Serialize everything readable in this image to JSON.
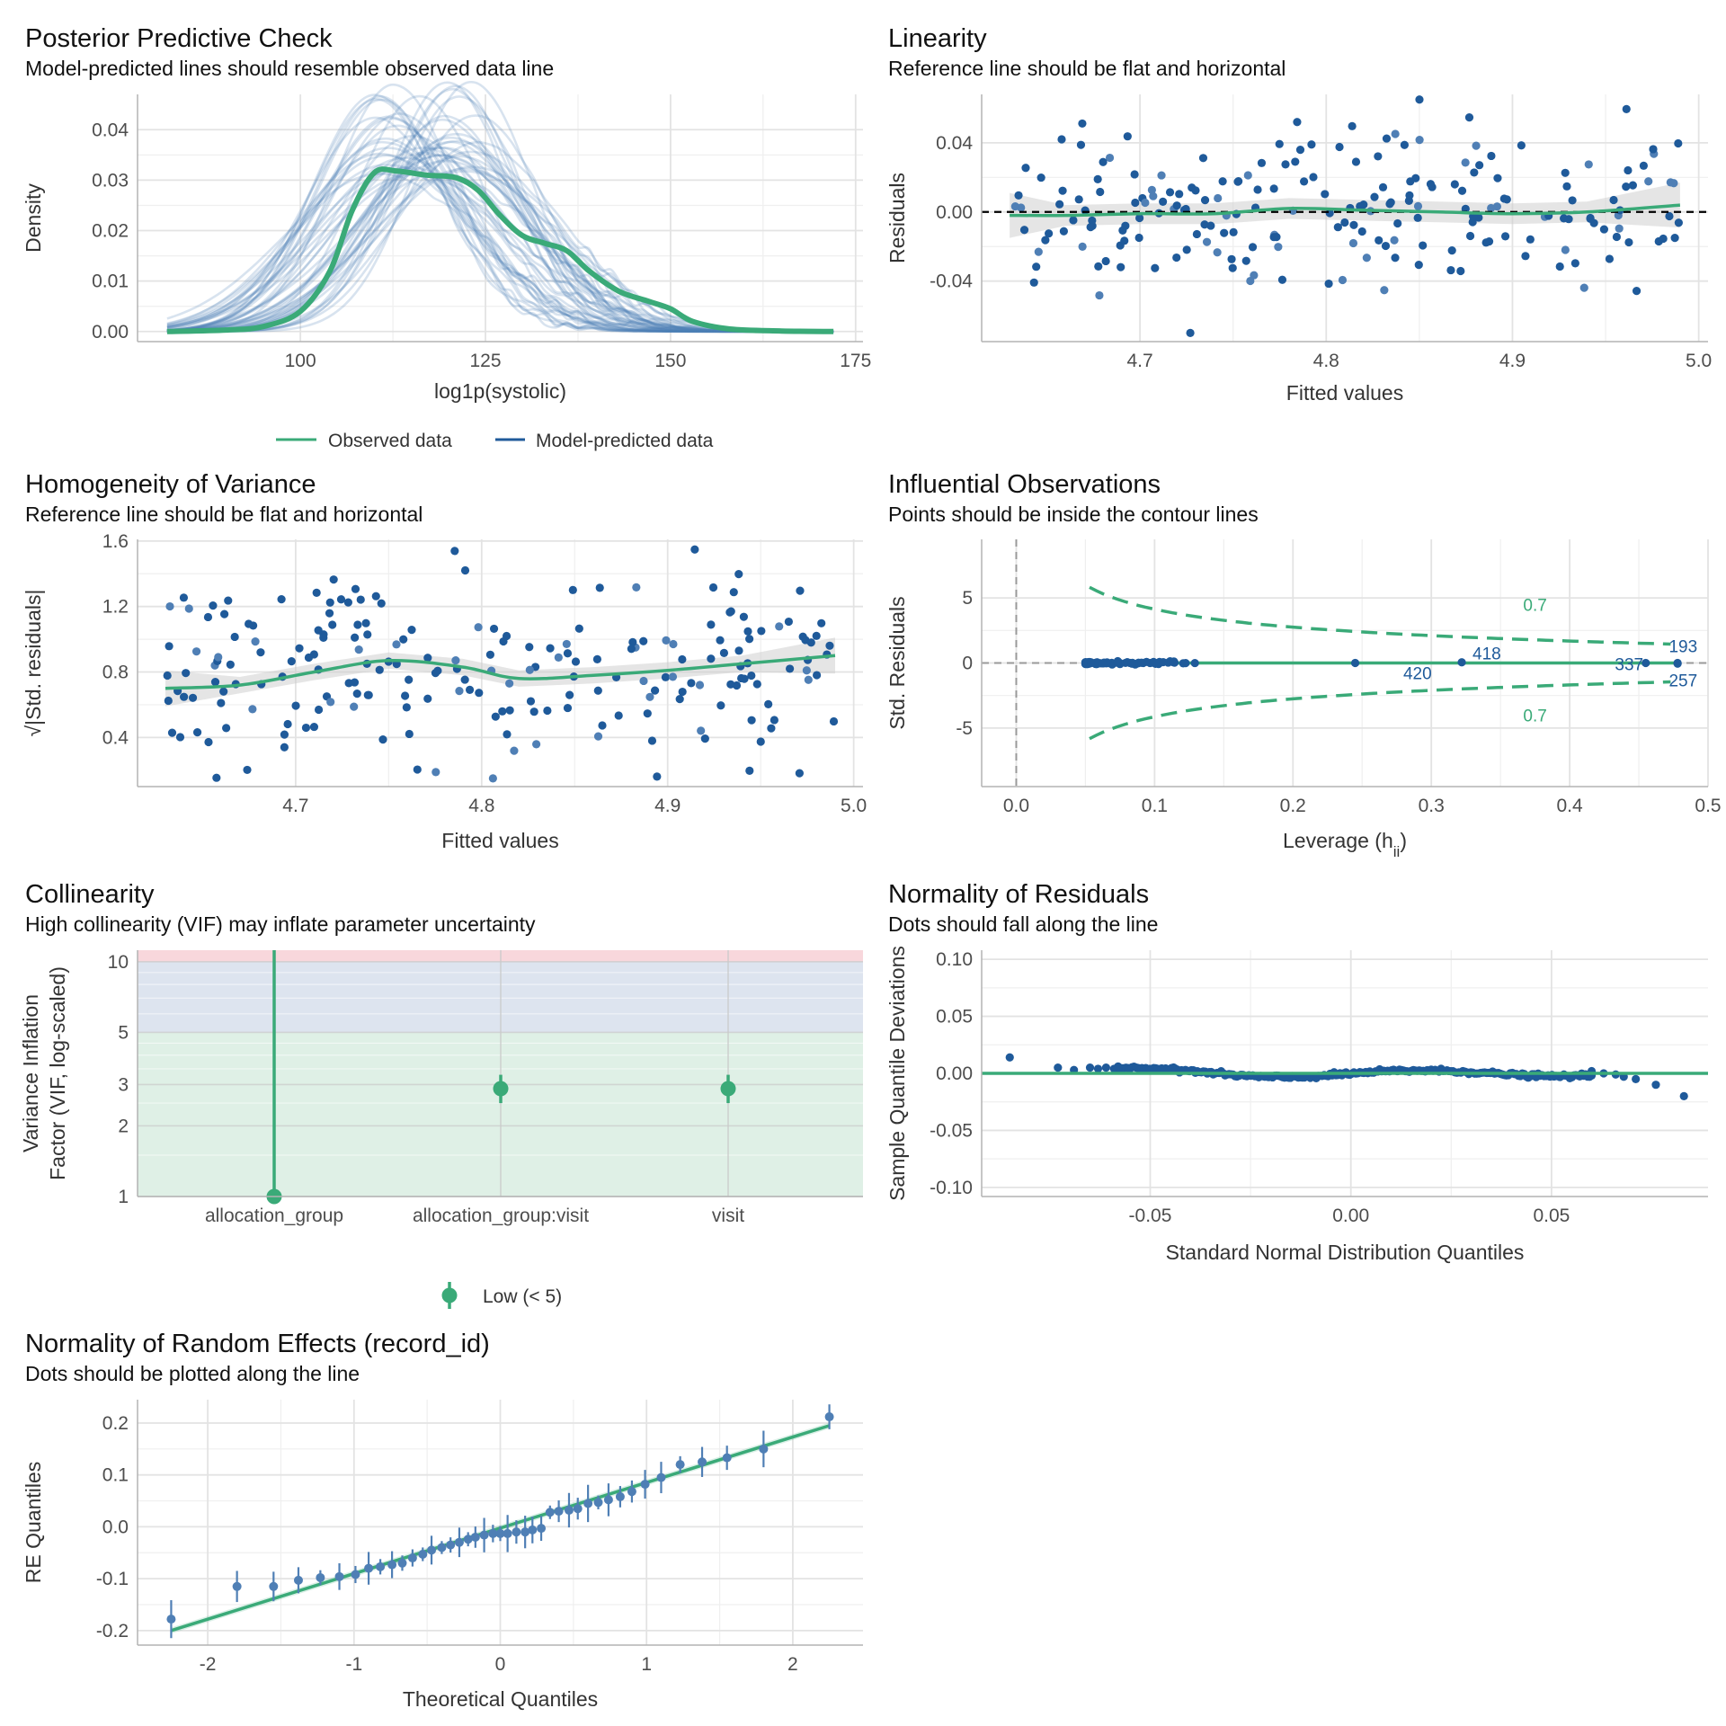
{
  "colors": {
    "green": "#3aaa78",
    "blue": "#1f5a9a",
    "blue_light": "#4f7fb5",
    "ribbon": "#cccccc",
    "grid": "#e3e3e3",
    "axis": "#b3b3b3",
    "zone_high": "#f8d7dc",
    "zone_moderate": "#dde4ef",
    "zone_low": "#dff0e6"
  },
  "chart_data": [
    {
      "id": "ppc",
      "type": "line",
      "title": "Posterior Predictive Check",
      "subtitle": "Model-predicted lines should resemble observed data line",
      "xlabel": "log1p(systolic)",
      "ylabel": "Density",
      "xlim": [
        78,
        176
      ],
      "ylim": [
        -0.002,
        0.047
      ],
      "xticks": [
        100,
        125,
        150,
        175
      ],
      "yticks": [
        0.0,
        0.01,
        0.02,
        0.03,
        0.04
      ],
      "ytick_labels": [
        "0.00",
        "0.01",
        "0.02",
        "0.03",
        "0.04"
      ],
      "legend": [
        {
          "name": "Observed data",
          "color": "#3aaa78"
        },
        {
          "name": "Model-predicted data",
          "color": "#1f5a9a"
        }
      ],
      "observed": [
        [
          82,
          0
        ],
        [
          90,
          0.0003
        ],
        [
          95,
          0.001
        ],
        [
          100,
          0.004
        ],
        [
          104,
          0.012
        ],
        [
          107,
          0.024
        ],
        [
          110,
          0.0315
        ],
        [
          113,
          0.0318
        ],
        [
          117,
          0.031
        ],
        [
          121,
          0.0305
        ],
        [
          124,
          0.028
        ],
        [
          127,
          0.023
        ],
        [
          130,
          0.019
        ],
        [
          133,
          0.0175
        ],
        [
          136,
          0.016
        ],
        [
          139,
          0.012
        ],
        [
          143,
          0.008
        ],
        [
          147,
          0.006
        ],
        [
          150,
          0.0045
        ],
        [
          153,
          0.002
        ],
        [
          158,
          0.0005
        ],
        [
          165,
          0.0001
        ],
        [
          172,
          0
        ]
      ],
      "predicted_summary": {
        "n_draws": 50,
        "center_range": [
          110,
          124
        ],
        "peak_range": [
          0.026,
          0.045
        ],
        "sd_range": [
          8,
          13
        ]
      }
    },
    {
      "id": "linearity",
      "type": "scatter",
      "title": "Linearity",
      "subtitle": "Reference line should be flat and horizontal",
      "xlabel": "Fitted values",
      "ylabel": "Residuals",
      "xlim": [
        4.615,
        5.005
      ],
      "ylim": [
        -0.075,
        0.068
      ],
      "xticks": [
        4.7,
        4.8,
        4.9,
        5.0
      ],
      "xtick_labels": [
        "4.7",
        "4.8",
        "4.9",
        "5.0"
      ],
      "yticks": [
        -0.04,
        0.0,
        0.04
      ],
      "ytick_labels": [
        "-0.04",
        "0.00",
        "0.04"
      ],
      "reference_y": 0,
      "smooth": [
        [
          4.63,
          -0.002
        ],
        [
          4.66,
          -0.002
        ],
        [
          4.7,
          -0.001
        ],
        [
          4.74,
          -0.001
        ],
        [
          4.78,
          0.002
        ],
        [
          4.82,
          0.001
        ],
        [
          4.86,
          0.0
        ],
        [
          4.9,
          -0.001
        ],
        [
          4.94,
          0.0
        ],
        [
          4.99,
          0.004
        ]
      ],
      "n_points": 210
    },
    {
      "id": "homogeneity",
      "type": "scatter",
      "title": "Homogeneity of Variance",
      "subtitle": "Reference line should be flat and horizontal",
      "xlabel": "Fitted values",
      "ylabel": "√|Std. residuals|",
      "xlim": [
        4.615,
        5.005
      ],
      "ylim": [
        0.1,
        1.61
      ],
      "xticks": [
        4.7,
        4.8,
        4.9,
        5.0
      ],
      "xtick_labels": [
        "4.7",
        "4.8",
        "4.9",
        "5.0"
      ],
      "yticks": [
        0.4,
        0.8,
        1.2,
        1.6
      ],
      "ytick_labels": [
        "0.4",
        "0.8",
        "1.2",
        "1.6"
      ],
      "smooth": [
        [
          4.63,
          0.7
        ],
        [
          4.67,
          0.72
        ],
        [
          4.71,
          0.8
        ],
        [
          4.75,
          0.87
        ],
        [
          4.79,
          0.83
        ],
        [
          4.82,
          0.76
        ],
        [
          4.86,
          0.78
        ],
        [
          4.9,
          0.81
        ],
        [
          4.94,
          0.85
        ],
        [
          4.99,
          0.9
        ]
      ],
      "n_points": 210
    },
    {
      "id": "influence",
      "type": "scatter",
      "title": "Influential Observations",
      "subtitle": "Points should be inside the contour lines",
      "xlabel": "Leverage (h",
      "xlabel_sub": "ii",
      "xlabel_end": ")",
      "ylabel": "Std. Residuals",
      "xlim": [
        -0.025,
        0.5
      ],
      "ylim": [
        -9.5,
        9.5
      ],
      "xticks": [
        0.0,
        0.1,
        0.2,
        0.3,
        0.4,
        0.5
      ],
      "xtick_labels": [
        "0.0",
        "0.1",
        "0.2",
        "0.3",
        "0.4",
        "0.5"
      ],
      "yticks": [
        -5,
        0,
        5
      ],
      "ytick_labels": [
        "-5",
        "0",
        "5"
      ],
      "contour_label": "0.7",
      "cook_distance": 0.7,
      "labeled_points": [
        {
          "label": "418",
          "x": 0.322,
          "y": 0.05
        },
        {
          "label": "420",
          "x": 0.245,
          "y": 0.0
        },
        {
          "label": "337",
          "x": 0.455,
          "y": 0.0
        },
        {
          "label": "193",
          "x": 0.478,
          "y": 0.0
        },
        {
          "label": "257",
          "x": 0.478,
          "y": -0.05
        }
      ],
      "cluster_x": [
        0.05,
        0.132
      ]
    },
    {
      "id": "collinearity",
      "type": "scatter",
      "title": "Collinearity",
      "subtitle": "High collinearity (VIF) may inflate parameter uncertainty",
      "ylabel_lines": [
        "Variance Inflation",
        "Factor (VIF, log-scaled)"
      ],
      "ylim": [
        1,
        11.2
      ],
      "yticks": [
        1,
        2,
        3,
        5,
        10
      ],
      "ytick_labels": [
        "1",
        "2",
        "3",
        "5",
        "10"
      ],
      "categories": [
        "allocation_group",
        "allocation_group:visit",
        "visit"
      ],
      "values": [
        1.0,
        2.88,
        2.88
      ],
      "ci_low": [
        1.0,
        2.5,
        2.5
      ],
      "ci_high": [
        11.2,
        3.3,
        3.3
      ],
      "legend": [
        {
          "name": "Low (< 5)",
          "color": "#3aaa78"
        }
      ]
    },
    {
      "id": "qq_resid",
      "type": "scatter",
      "title": "Normality of Residuals",
      "subtitle": "Dots should fall along the line",
      "xlabel": "Standard Normal Distribution Quantiles",
      "ylabel": "Sample Quantile Deviations",
      "xlim": [
        -0.092,
        0.089
      ],
      "ylim": [
        -0.108,
        0.108
      ],
      "xticks": [
        -0.05,
        0.0,
        0.05
      ],
      "xtick_labels": [
        "-0.05",
        "0.00",
        "0.05"
      ],
      "yticks": [
        -0.1,
        -0.05,
        0.0,
        0.05,
        0.1
      ],
      "ytick_labels": [
        "-0.10",
        "-0.05",
        "0.00",
        "0.05",
        "0.10"
      ],
      "points": [
        [
          -0.085,
          0.014
        ],
        [
          -0.073,
          0.005
        ],
        [
          -0.069,
          0.003
        ],
        [
          -0.065,
          0.005
        ],
        [
          -0.063,
          0.004
        ],
        [
          -0.061,
          0.005
        ],
        [
          -0.059,
          0.004
        ],
        [
          -0.058,
          0.006
        ],
        [
          0.06,
          0.002
        ],
        [
          0.063,
          0.0
        ],
        [
          0.066,
          -0.001
        ],
        [
          0.068,
          -0.003
        ],
        [
          0.071,
          -0.005
        ],
        [
          0.076,
          -0.01
        ],
        [
          0.083,
          -0.02
        ]
      ]
    },
    {
      "id": "qq_re",
      "type": "scatter",
      "title": "Normality of Random Effects (record_id)",
      "subtitle": "Dots should be plotted along the line",
      "xlabel": "Theoretical Quantiles",
      "ylabel": "RE Quantiles",
      "xlim": [
        -2.48,
        2.48
      ],
      "ylim": [
        -0.228,
        0.245
      ],
      "xticks": [
        -2,
        -1,
        0,
        1,
        2
      ],
      "xtick_labels": [
        "-2",
        "-1",
        "0",
        "1",
        "2"
      ],
      "yticks": [
        -0.2,
        -0.1,
        0.0,
        0.1,
        0.2
      ],
      "ytick_labels": [
        "-0.2",
        "-0.1",
        "0.0",
        "0.1",
        "0.2"
      ],
      "line": [
        [
          -2.25,
          -0.2
        ],
        [
          2.25,
          0.195
        ]
      ],
      "points": [
        [
          -2.25,
          -0.178
        ],
        [
          -1.8,
          -0.115
        ],
        [
          -1.55,
          -0.115
        ],
        [
          -1.38,
          -0.103
        ],
        [
          -1.23,
          -0.098
        ],
        [
          -1.1,
          -0.096
        ],
        [
          -0.99,
          -0.092
        ],
        [
          -0.9,
          -0.08
        ],
        [
          -0.82,
          -0.077
        ],
        [
          -0.74,
          -0.073
        ],
        [
          -0.67,
          -0.07
        ],
        [
          -0.6,
          -0.06
        ],
        [
          -0.53,
          -0.053
        ],
        [
          -0.47,
          -0.045
        ],
        [
          -0.4,
          -0.04
        ],
        [
          -0.34,
          -0.035
        ],
        [
          -0.28,
          -0.03
        ],
        [
          -0.22,
          -0.024
        ],
        [
          -0.17,
          -0.02
        ],
        [
          -0.11,
          -0.016
        ],
        [
          -0.05,
          -0.013
        ],
        [
          0.0,
          -0.013
        ],
        [
          0.05,
          -0.013
        ],
        [
          0.11,
          -0.01
        ],
        [
          0.17,
          -0.01
        ],
        [
          0.22,
          -0.006
        ],
        [
          0.28,
          -0.003
        ],
        [
          0.34,
          0.028
        ],
        [
          0.4,
          0.03
        ],
        [
          0.47,
          0.032
        ],
        [
          0.53,
          0.035
        ],
        [
          0.6,
          0.045
        ],
        [
          0.67,
          0.047
        ],
        [
          0.74,
          0.052
        ],
        [
          0.82,
          0.058
        ],
        [
          0.9,
          0.068
        ],
        [
          0.99,
          0.082
        ],
        [
          1.1,
          0.095
        ],
        [
          1.23,
          0.12
        ],
        [
          1.38,
          0.125
        ],
        [
          1.55,
          0.133
        ],
        [
          1.8,
          0.15
        ],
        [
          2.25,
          0.212
        ]
      ]
    }
  ]
}
